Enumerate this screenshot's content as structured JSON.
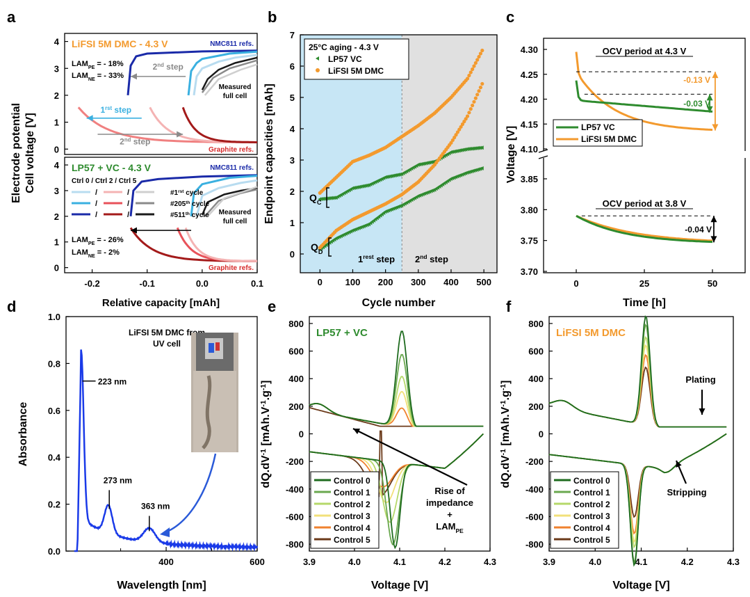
{
  "chart_data": [
    {
      "panel": "a",
      "type": "line",
      "xlabel": "Relative capacity [mAh]",
      "ylabel": "Electrode potential\nCell voltage [V]",
      "top": {
        "title": "LiFSI 5M DMC - 4.3 V",
        "lam_pe": "LAM",
        "lam_pe_sub": "PE",
        "lam_pe_val": " = - 18%",
        "lam_ne": "LAM",
        "lam_ne_sub": "NE",
        "lam_ne_val": " = - 33%",
        "nmc_label": "NMC811 refs.",
        "graphite_label": "Graphite refs.",
        "full_cell_label": "Measured\nfull cell",
        "step1": "1",
        "step1_sup": "rst",
        "step1_rest": " step",
        "step2": "2",
        "step2_sup": "nd",
        "step2_rest": " step",
        "yticks": [
          0,
          1,
          2,
          3,
          4
        ]
      },
      "bottom": {
        "title": "LP57 + VC - 4.3 V",
        "lam_pe": "LAM",
        "lam_pe_sub": "PE",
        "lam_pe_val": " = - 26%",
        "lam_ne": "LAM",
        "lam_ne_sub": "NE",
        "lam_ne_val": " = - 2%",
        "nmc_label": "NMC811 refs.",
        "graphite_label": "Graphite refs.",
        "full_cell_label": "Measured\nfull cell",
        "legend_header": "Ctrl 0  / Ctrl 2 / Ctrl 5",
        "legend": [
          {
            "label": "#1",
            "sup": "rst",
            "rest": " cycle",
            "colors": [
              "#b8dcf0",
              "#f4b3b3",
              "#cfcfcf"
            ]
          },
          {
            "label": "#205",
            "sup": "th",
            "rest": " cycle",
            "colors": [
              "#3ab0e0",
              "#e8525a",
              "#8a8a8a"
            ]
          },
          {
            "label": "#511",
            "sup": "th",
            "rest": " cycle",
            "colors": [
              "#1a2aa8",
              "#a31a1a",
              "#1a1a1a"
            ]
          }
        ],
        "yticks": [
          0,
          1,
          2,
          3,
          4
        ]
      },
      "xticks": [
        -0.2,
        -0.1,
        0.0,
        0.1
      ],
      "xlim": [
        -0.25,
        0.1
      ],
      "ylim": [
        -0.2,
        4.3
      ]
    },
    {
      "panel": "b",
      "type": "scatter",
      "xlabel": "Cycle number",
      "ylabel": "Endpoint capacities [mAh]",
      "legend_title": "25°C aging - 4.3 V",
      "series": [
        {
          "name": "LP57 VC",
          "color": "#2e8b2e"
        },
        {
          "name": "LiFSI 5M DMC",
          "color": "#f39a2e"
        }
      ],
      "qc": "Q",
      "qc_sub": "C",
      "qd": "Q",
      "qd_sub": "D",
      "step1": "1",
      "step1_sup": "rest",
      "step1_rest": " step",
      "step2": "2",
      "step2_sup": "nd",
      "step2_rest": " step",
      "xticks": [
        0,
        100,
        200,
        300,
        400,
        500
      ],
      "yticks": [
        0,
        1,
        2,
        3,
        4,
        5,
        6,
        7
      ],
      "xlim": [
        -60,
        540
      ],
      "ylim": [
        -0.6,
        7
      ],
      "lifsi_qc": [
        [
          0,
          1.95
        ],
        [
          50,
          2.45
        ],
        [
          100,
          2.95
        ],
        [
          150,
          3.15
        ],
        [
          200,
          3.4
        ],
        [
          250,
          3.75
        ],
        [
          300,
          4.1
        ],
        [
          350,
          4.5
        ],
        [
          400,
          5.0
        ],
        [
          450,
          5.6
        ],
        [
          500,
          6.6
        ]
      ],
      "lifsi_qd": [
        [
          0,
          0.2
        ],
        [
          50,
          0.75
        ],
        [
          100,
          1.1
        ],
        [
          150,
          1.35
        ],
        [
          200,
          1.6
        ],
        [
          250,
          1.9
        ],
        [
          300,
          2.3
        ],
        [
          350,
          2.85
        ],
        [
          400,
          3.55
        ],
        [
          450,
          4.4
        ],
        [
          500,
          5.55
        ]
      ],
      "lp57_qc": [
        [
          0,
          1.75
        ],
        [
          50,
          1.8
        ],
        [
          100,
          2.1
        ],
        [
          150,
          2.2
        ],
        [
          200,
          2.45
        ],
        [
          250,
          2.55
        ],
        [
          300,
          2.85
        ],
        [
          350,
          2.95
        ],
        [
          400,
          3.25
        ],
        [
          450,
          3.35
        ],
        [
          500,
          3.4
        ]
      ],
      "lp57_qd": [
        [
          0,
          0.15
        ],
        [
          50,
          0.5
        ],
        [
          100,
          0.75
        ],
        [
          150,
          0.95
        ],
        [
          200,
          1.35
        ],
        [
          250,
          1.55
        ],
        [
          300,
          1.85
        ],
        [
          350,
          2.05
        ],
        [
          400,
          2.4
        ],
        [
          450,
          2.6
        ],
        [
          500,
          2.75
        ]
      ]
    },
    {
      "panel": "c",
      "type": "line",
      "xlabel": "Time [h]",
      "ylabel": "Voltage [V]",
      "top_title": "OCV period at 4.3 V",
      "bottom_title": "OCV period at 3.8 V",
      "series": [
        {
          "name": "LP57 VC",
          "color": "#2e8b2e"
        },
        {
          "name": "LiFSI 5M DMC",
          "color": "#f39a2e"
        }
      ],
      "annotations": [
        "-0.13 V",
        "-0.03 V",
        "-0.04 V"
      ],
      "xticks": [
        0,
        25,
        50
      ],
      "yticks_top": [
        4.1,
        4.15,
        4.2,
        4.25,
        4.3
      ],
      "yticks_bottom": [
        3.7,
        3.75,
        3.8,
        3.85
      ],
      "xlim": [
        -12,
        62
      ]
    },
    {
      "panel": "d",
      "type": "line",
      "xlabel": "Wavelength [nm]",
      "ylabel": "Absorbance",
      "title": "LiFSI 5M DMC from\nUV cell",
      "peaks": [
        "223 nm",
        "273 nm",
        "363 nm"
      ],
      "xticks": [
        400,
        600
      ],
      "xtick_200": "",
      "yticks": [
        0.0,
        0.2,
        0.4,
        0.6,
        0.8,
        1.0
      ],
      "xlim": [
        180,
        600
      ],
      "ylim": [
        0,
        1.0
      ],
      "color": "#1a3ae8"
    },
    {
      "panel": "e",
      "type": "line",
      "xlabel": "Voltage [V]",
      "ylabel": "dQ.dV",
      "ylabel_sup": "-1",
      "ylabel_rest": " [mAh.V",
      "ylabel_sup2": "-1",
      "ylabel_end": ".g",
      "ylabel_sup3": "-1",
      "ylabel_close": "]",
      "title": "LP57 + VC",
      "annotation": "Rise of\nimpedance\n+\nLAM",
      "annotation_sub": "PE",
      "legend": [
        "Control 0",
        "Control 1",
        "Control 2",
        "Control 3",
        "Control 4",
        "Control 5"
      ],
      "colors": [
        "#1e6b1e",
        "#6aa84f",
        "#b5d86a",
        "#f2e07a",
        "#f0822e",
        "#6b3a1a"
      ],
      "xticks": [
        3.9,
        4.0,
        4.1,
        4.2,
        4.3
      ],
      "yticks": [
        -800,
        -600,
        -400,
        -200,
        0,
        200,
        400,
        600,
        800
      ],
      "xlim": [
        3.9,
        4.3
      ],
      "ylim": [
        -850,
        850
      ]
    },
    {
      "panel": "f",
      "type": "line",
      "xlabel": "Voltage [V]",
      "title": "LiFSI 5M DMC",
      "annotations": [
        "Plating",
        "Stripping"
      ],
      "legend": [
        "Control 0",
        "Control 1",
        "Control 2",
        "Control 3",
        "Control 4",
        "Control 5"
      ],
      "colors": [
        "#1e6b1e",
        "#6aa84f",
        "#b5d86a",
        "#f2e07a",
        "#f0822e",
        "#6b3a1a"
      ],
      "xticks": [
        3.9,
        4.0,
        4.1,
        4.2,
        4.3
      ],
      "yticks": [
        -800,
        -600,
        -400,
        -200,
        0,
        200,
        400,
        600,
        800
      ],
      "xlim": [
        3.9,
        4.3
      ],
      "ylim": [
        -850,
        850
      ]
    }
  ],
  "panel_letters": [
    "a",
    "b",
    "c",
    "d",
    "e",
    "f"
  ]
}
